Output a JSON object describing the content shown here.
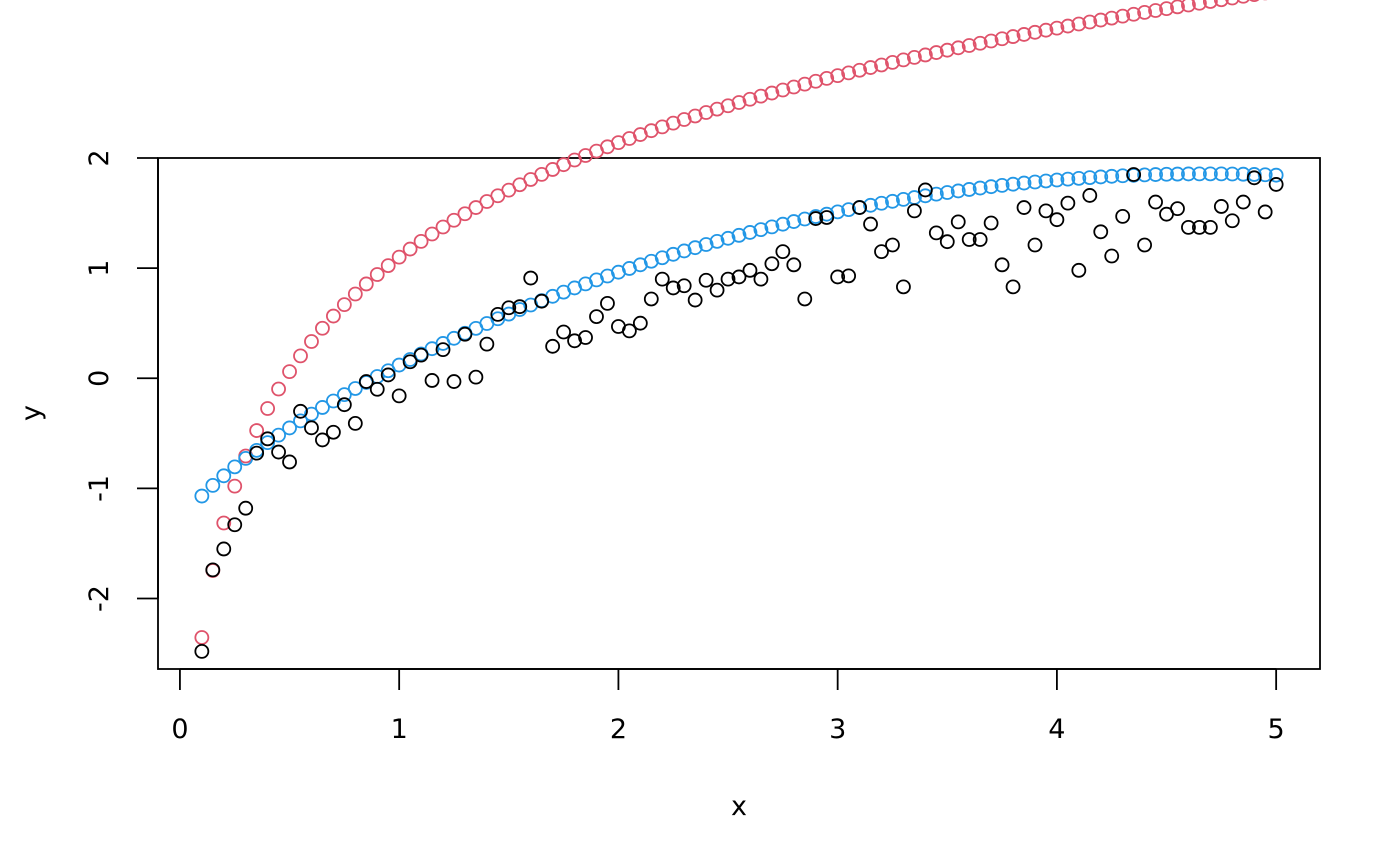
{
  "chart_data": {
    "type": "scatter",
    "title": "",
    "xlabel": "x",
    "ylabel": "y",
    "xlim": [
      -0.1,
      5.2
    ],
    "ylim": [
      -2.64,
      2.0
    ],
    "xticks": [
      0,
      1,
      2,
      3,
      4,
      5
    ],
    "xtick_labels": [
      "0",
      "1",
      "2",
      "3",
      "4",
      "5"
    ],
    "yticks": [
      -2,
      -1,
      0,
      1,
      2
    ],
    "ytick_labels": [
      "-2",
      "-1",
      "0",
      "1",
      "2"
    ],
    "grid": false,
    "legend": "none",
    "marker": "open-circle",
    "series": [
      {
        "color": "#000000",
        "x": [
          0.1,
          0.15,
          0.2,
          0.25,
          0.3,
          0.35,
          0.4,
          0.45,
          0.5,
          0.55,
          0.6,
          0.65,
          0.7,
          0.75,
          0.8,
          0.85,
          0.9,
          0.95,
          1.0,
          1.05,
          1.1,
          1.15,
          1.2,
          1.25,
          1.3,
          1.35,
          1.4,
          1.45,
          1.5,
          1.55,
          1.6,
          1.65,
          1.7,
          1.75,
          1.8,
          1.85,
          1.9,
          1.95,
          2.0,
          2.05,
          2.1,
          2.15,
          2.2,
          2.25,
          2.3,
          2.35,
          2.4,
          2.45,
          2.5,
          2.55,
          2.6,
          2.65,
          2.7,
          2.75,
          2.8,
          2.85,
          2.9,
          2.95,
          3.0,
          3.05,
          3.1,
          3.15,
          3.2,
          3.25,
          3.3,
          3.35,
          3.4,
          3.45,
          3.5,
          3.55,
          3.6,
          3.65,
          3.7,
          3.75,
          3.8,
          3.85,
          3.9,
          3.95,
          4.0,
          4.05,
          4.1,
          4.15,
          4.2,
          4.25,
          4.3,
          4.35,
          4.4,
          4.45,
          4.5,
          4.55,
          4.6,
          4.65,
          4.7,
          4.75,
          4.8,
          4.85,
          4.9,
          4.95,
          5.0
        ],
        "y": [
          -2.48,
          -1.74,
          -1.55,
          -1.33,
          -1.18,
          -0.68,
          -0.55,
          -0.67,
          -0.76,
          -0.3,
          -0.45,
          -0.56,
          -0.49,
          -0.24,
          -0.41,
          -0.03,
          -0.1,
          0.03,
          -0.16,
          0.15,
          0.21,
          -0.02,
          0.26,
          -0.03,
          0.4,
          0.01,
          0.31,
          0.58,
          0.64,
          0.65,
          0.91,
          0.7,
          0.29,
          0.42,
          0.34,
          0.37,
          0.56,
          0.68,
          0.47,
          0.43,
          0.5,
          0.72,
          0.9,
          0.82,
          0.84,
          0.71,
          0.89,
          0.8,
          0.9,
          0.92,
          0.98,
          0.9,
          1.04,
          1.15,
          1.03,
          0.72,
          1.45,
          1.46,
          0.92,
          0.93,
          1.55,
          1.4,
          1.15,
          1.21,
          0.83,
          1.52,
          1.71,
          1.32,
          1.24,
          1.42,
          1.26,
          1.26,
          1.41,
          1.03,
          0.83,
          1.55,
          1.21,
          1.52,
          1.44,
          1.59,
          0.98,
          1.66,
          1.33,
          1.11,
          1.47,
          1.85,
          1.21,
          1.6,
          1.49,
          1.54,
          1.37,
          1.37,
          1.37,
          1.56,
          1.43,
          1.6,
          1.82,
          1.51,
          1.76
        ]
      },
      {
        "color": "#DF536B",
        "function": "1.1 + 1.5*ln(x)"
      },
      {
        "color": "#2297E6",
        "function": "-1.4 + 0.78*sqrt(x) + 0.85*x - 0.11*x^2"
      }
    ]
  }
}
